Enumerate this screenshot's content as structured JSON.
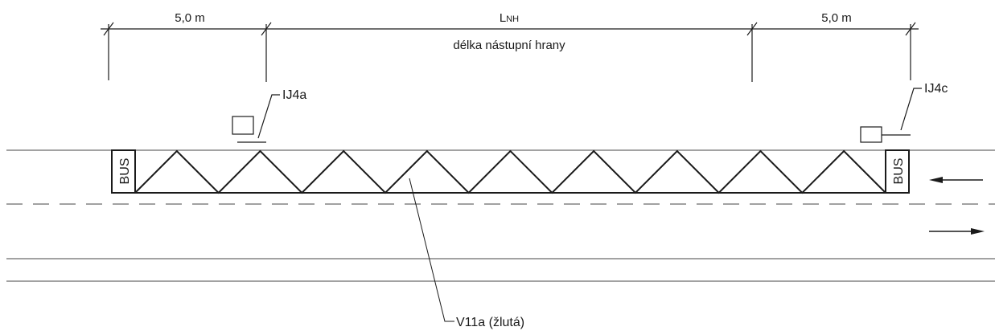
{
  "dimensions": {
    "left": "5,0 m",
    "middle_main": "L",
    "middle_sub": "NH",
    "middle_caption": "délka nástupní hrany",
    "right": "5,0 m"
  },
  "signs": {
    "left_label": "IJ4a",
    "right_label": "IJ4c"
  },
  "markings": {
    "bus_left": "BUS",
    "bus_right": "BUS",
    "zigzag_label": "V11a (žlutá)",
    "zigzag_peaks": 9
  },
  "colors": {
    "line": "#1a1a1a",
    "thin_line": "#444444"
  }
}
